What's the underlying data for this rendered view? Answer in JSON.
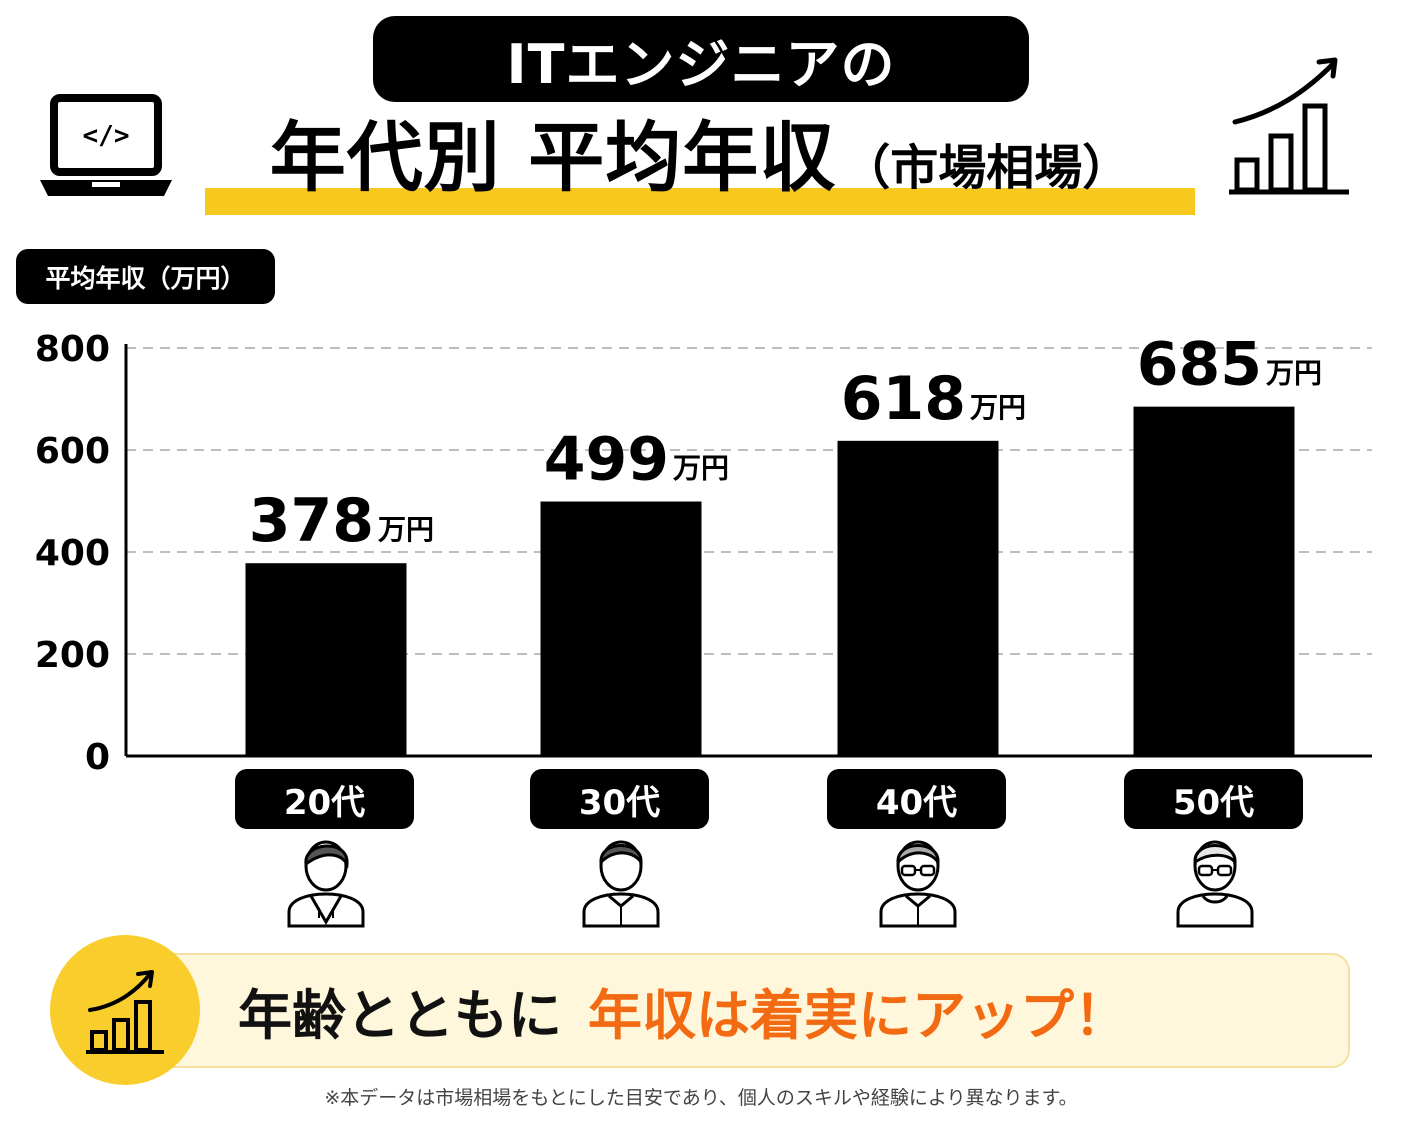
{
  "header": {
    "subtitle_pill": "ITエンジニアの",
    "title_main": "年代別 平均年収",
    "title_sub": "（市場相場）",
    "icon_left": "laptop-code-icon",
    "icon_right": "growth-chart-icon",
    "accent_color": "#f7c81e"
  },
  "chart_data": {
    "type": "bar",
    "title": "年代別 平均年収（市場相場）",
    "ylabel": "平均年収（万円）",
    "categories": [
      "20代",
      "30代",
      "40代",
      "50代"
    ],
    "values": [
      378,
      499,
      618,
      685
    ],
    "value_labels": [
      "378",
      "499",
      "618",
      "685"
    ],
    "value_unit": "万円",
    "ylim": [
      0,
      800
    ],
    "yticks": [
      "0",
      "200",
      "400",
      "600",
      "800"
    ],
    "grid": true,
    "bar_color": "#000000"
  },
  "people": [
    {
      "icon": "young-person-icon"
    },
    {
      "icon": "person-icon"
    },
    {
      "icon": "person-glasses-icon"
    },
    {
      "icon": "senior-person-glasses-icon"
    }
  ],
  "banner": {
    "text_plain": "年齢とともに",
    "text_highlight": "年収は着実にアップ！",
    "highlight_color": "#f26b12",
    "icon": "growth-chart-icon"
  },
  "footnote": "※本データは市場相場をもとにした目安であり、個人のスキルや経験により異なります。"
}
